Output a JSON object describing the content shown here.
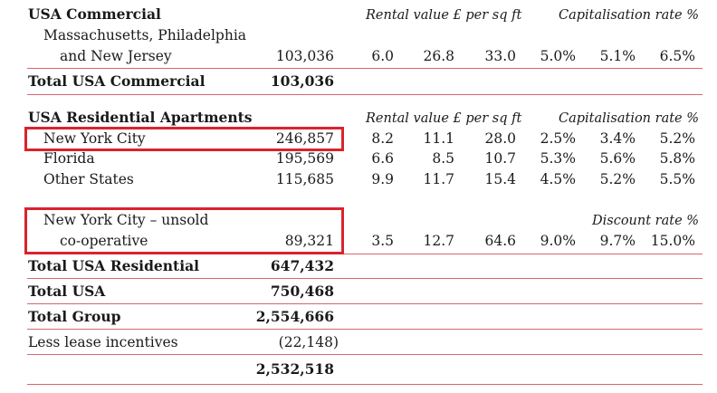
{
  "commercial": {
    "heading": "USA Commercial",
    "rental_header": "Rental value £ per sq ft",
    "cap_header": "Capitalisation rate %",
    "row_label_1": "Massachusetts, Philadelphia",
    "row_label_2": "and New Jersey",
    "row_value": "103,036",
    "row_rents": [
      "6.0",
      "26.8",
      "33.0"
    ],
    "row_rates": [
      "5.0%",
      "5.1%",
      "6.5%"
    ],
    "total_label": "Total USA Commercial",
    "total_value": "103,036"
  },
  "residential": {
    "heading": "USA Residential Apartments",
    "rental_header": "Rental value £ per sq ft",
    "cap_header": "Capitalisation rate %",
    "rows": [
      {
        "label": "New York City",
        "value": "246,857",
        "rents": [
          "8.2",
          "11.1",
          "28.0"
        ],
        "rates": [
          "2.5%",
          "3.4%",
          "5.2%"
        ]
      },
      {
        "label": "Florida",
        "value": "195,569",
        "rents": [
          "6.6",
          "8.5",
          "10.7"
        ],
        "rates": [
          "5.3%",
          "5.6%",
          "5.8%"
        ]
      },
      {
        "label": "Other States",
        "value": "115,685",
        "rents": [
          "9.9",
          "11.7",
          "15.4"
        ],
        "rates": [
          "4.5%",
          "5.2%",
          "5.5%"
        ]
      }
    ],
    "unsold": {
      "label_1": "New York City – unsold",
      "label_2": "co-operative",
      "discount_header": "Discount rate %",
      "value": "89,321",
      "rents": [
        "3.5",
        "12.7",
        "64.6"
      ],
      "rates": [
        "9.0%",
        "9.7%",
        "15.0%"
      ]
    },
    "total_label": "Total USA Residential",
    "total_value": "647,432"
  },
  "totals": {
    "usa_label": "Total USA",
    "usa_value": "750,468",
    "group_label": "Total Group",
    "group_value": "2,554,666",
    "lease_label": "Less lease incentives",
    "lease_value": "(22,148)",
    "net_value": "2,532,518"
  },
  "colors": {
    "rule": "#d9666a",
    "highlight_box": "#d9232e"
  }
}
